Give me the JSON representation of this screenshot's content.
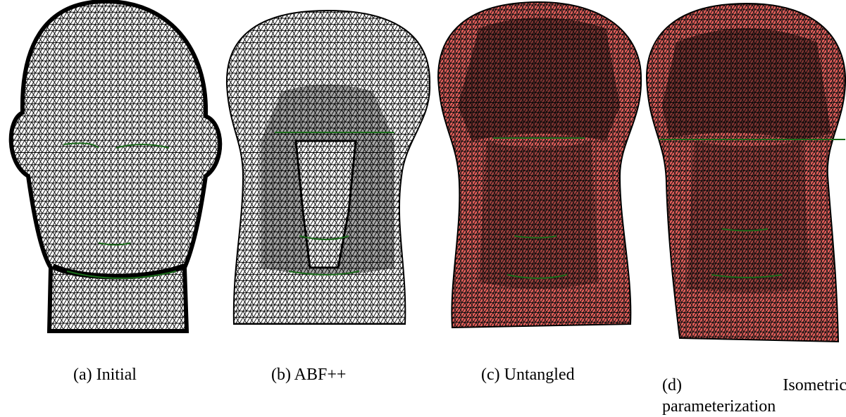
{
  "panels": [
    {
      "caption": "(a) Initial"
    },
    {
      "caption": "(b) ABF++"
    },
    {
      "caption": "(c) Untangled"
    },
    {
      "caption": "(d) Isometric parameterization"
    }
  ]
}
